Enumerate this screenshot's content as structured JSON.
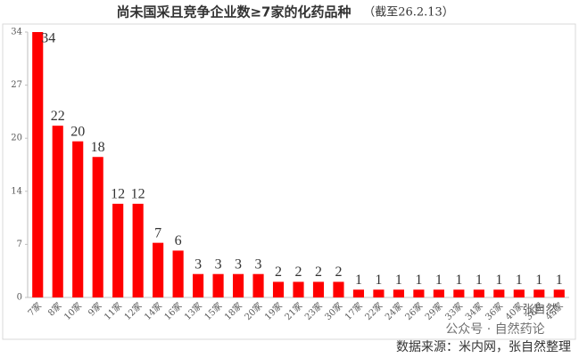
{
  "chart_data": {
    "type": "bar",
    "title": "尚未国采且竞争企业数≥7家的化药品种",
    "subtitle": "（截至26.2.13）",
    "categories": [
      "7家",
      "8家",
      "10家",
      "9家",
      "11家",
      "12家",
      "14家",
      "16家",
      "13家",
      "15家",
      "18家",
      "20家",
      "19家",
      "21家",
      "23家",
      "30家",
      "17家",
      "22家",
      "24家",
      "26家",
      "29家",
      "33家",
      "34家",
      "36家",
      "40家",
      "38家",
      "45家"
    ],
    "values": [
      34,
      22,
      20,
      18,
      12,
      12,
      7,
      6,
      3,
      3,
      3,
      3,
      2,
      2,
      2,
      2,
      1,
      1,
      1,
      1,
      1,
      1,
      1,
      1,
      1,
      1,
      1
    ],
    "color": "#ff0000",
    "ylim": [
      0,
      34
    ],
    "yticks": [
      0,
      {
        "value": 6.8,
        "label": "7"
      },
      {
        "value": 13.6,
        "label": "14"
      },
      {
        "value": 20.4,
        "label": "20"
      },
      {
        "value": 27.2,
        "label": "27"
      },
      34
    ],
    "grid": false,
    "source": "数据来源：米内网，张自然整理",
    "watermark": "公众号 · 自然药论",
    "watermark_author": "张自然"
  }
}
